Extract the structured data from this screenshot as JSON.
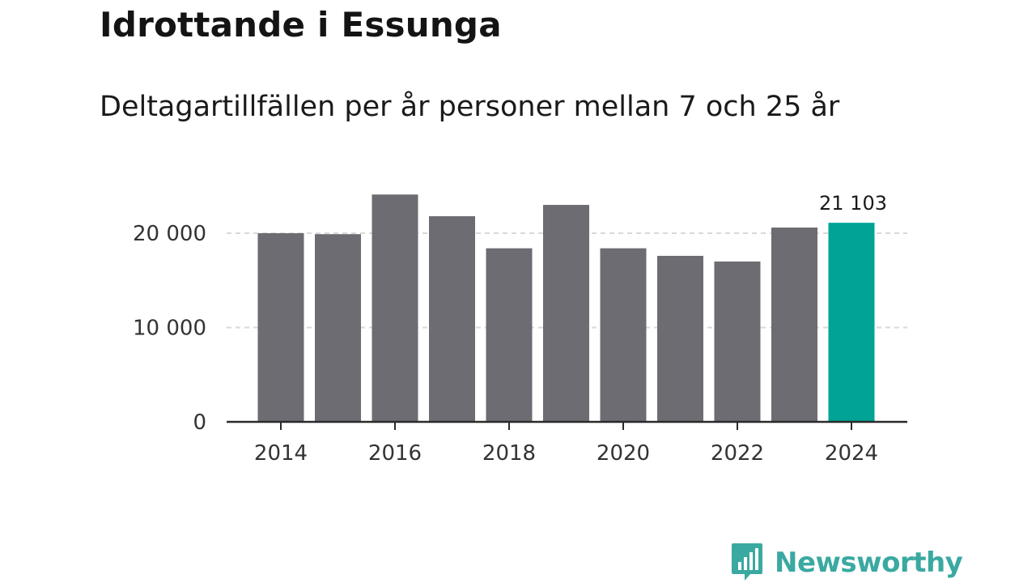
{
  "header": {
    "title": "Idrottande i Essunga",
    "subtitle": "Deltagartillfällen per år personer mellan 7 och 25 år"
  },
  "chart_data": {
    "type": "bar",
    "title": "Idrottande i Essunga",
    "subtitle": "Deltagartillfällen per år personer mellan 7 och 25 år",
    "xlabel": "",
    "ylabel": "",
    "categories": [
      "2014",
      "2015",
      "2016",
      "2017",
      "2018",
      "2019",
      "2020",
      "2021",
      "2022",
      "2023",
      "2024"
    ],
    "values": [
      20000,
      19900,
      24100,
      21800,
      18400,
      23000,
      18400,
      17600,
      17000,
      20600,
      21103
    ],
    "x_tick_labels": [
      "2014",
      "2016",
      "2018",
      "2020",
      "2022",
      "2024"
    ],
    "y_ticks": [
      {
        "value": 0,
        "label": "0"
      },
      {
        "value": 10000,
        "label": "10 000"
      },
      {
        "value": 20000,
        "label": "20 000"
      }
    ],
    "ylim": [
      0,
      26000
    ],
    "grid": true,
    "highlight_index": 10,
    "highlight_label": "21 103",
    "colors": {
      "bar": "#6d6c72",
      "highlight": "#00a396",
      "grid": "#d9d9d9",
      "axis": "#2a2a2a"
    }
  },
  "brand": {
    "name": "Newsworthy",
    "icon": "newsworthy-logo-icon",
    "color": "#3aa9a1"
  }
}
